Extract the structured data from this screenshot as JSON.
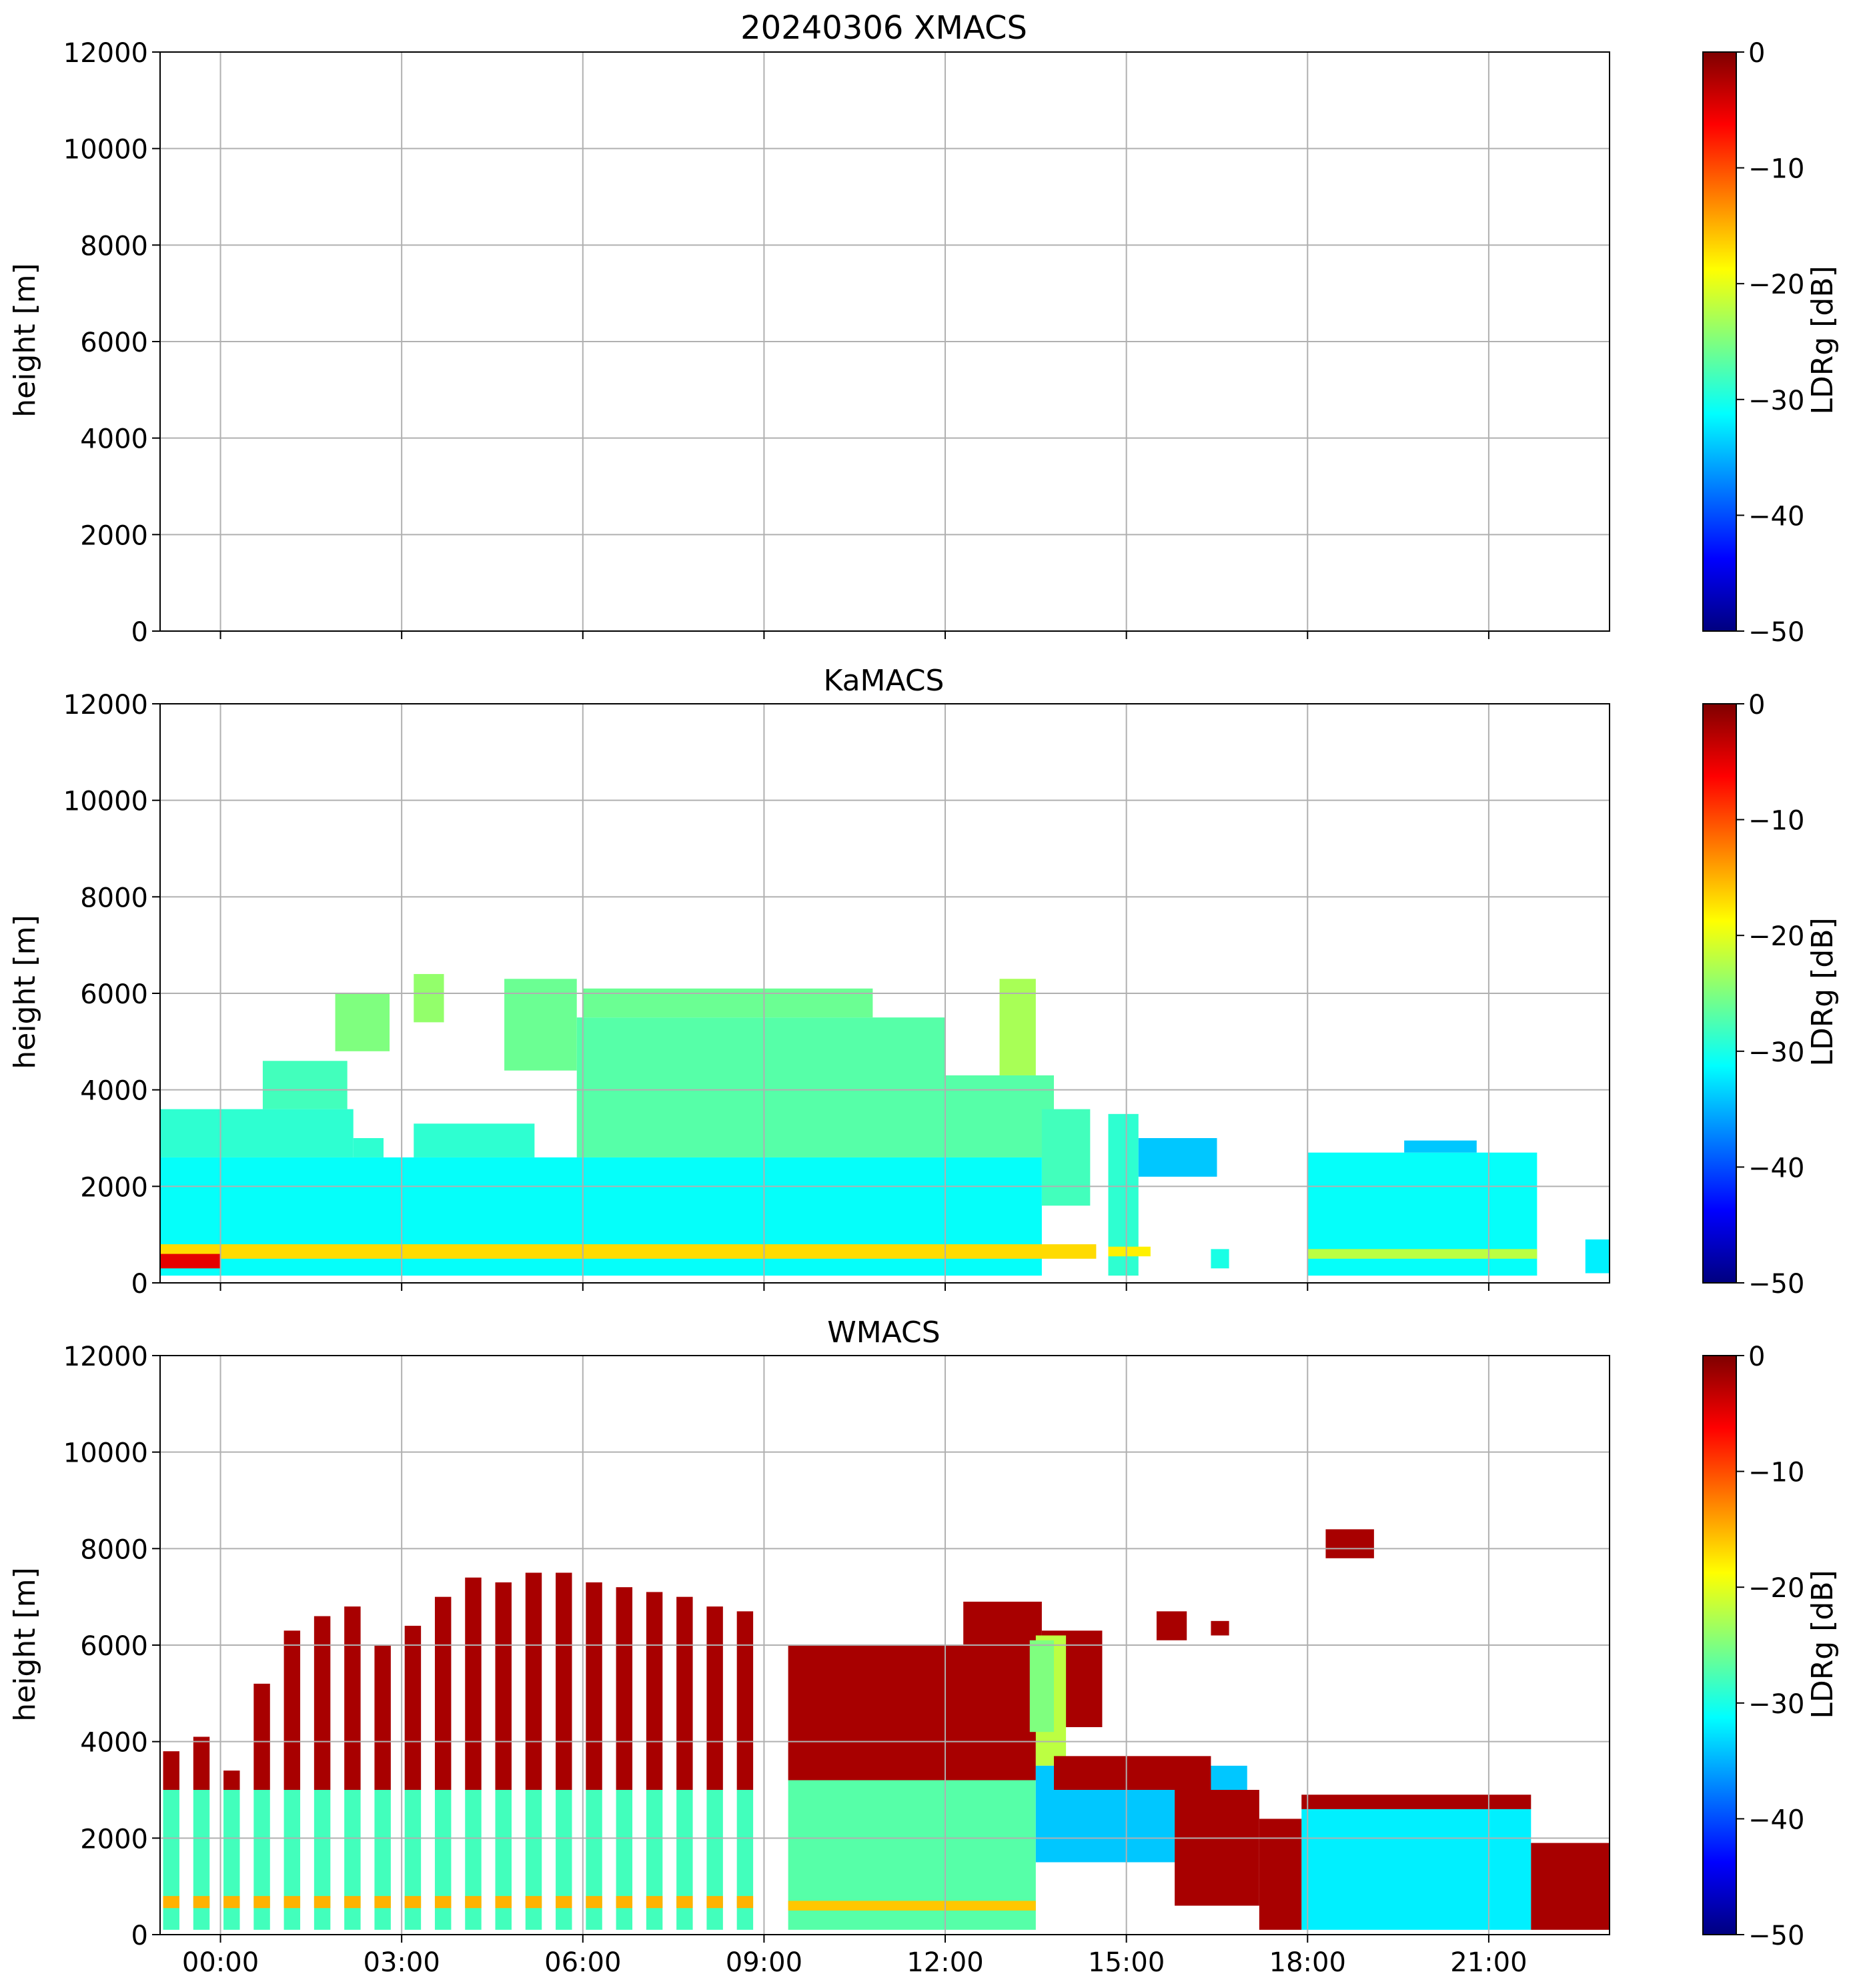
{
  "figure": {
    "colorscale": {
      "name": "jet",
      "stops": [
        "#00007f",
        "#0000ff",
        "#007fff",
        "#00ffff",
        "#7fff7f",
        "#ffff00",
        "#ff7f00",
        "#ff0000",
        "#7f0000"
      ]
    }
  },
  "chart_data": [
    {
      "type": "heatmap",
      "title": "20240306 XMACS",
      "ylabel": "height [m]",
      "xlim": [
        "23:00",
        "23:00"
      ],
      "xlim_hours": [
        -1,
        23
      ],
      "ylim": [
        0,
        12000
      ],
      "yticks": [
        {
          "value": 0,
          "label": "0"
        },
        {
          "value": 2000,
          "label": "2000"
        },
        {
          "value": 4000,
          "label": "4000"
        },
        {
          "value": 6000,
          "label": "6000"
        },
        {
          "value": 8000,
          "label": "8000"
        },
        {
          "value": 10000,
          "label": "10000"
        },
        {
          "value": 12000,
          "label": "12000"
        }
      ],
      "xticks_hours": [
        0,
        3,
        6,
        9,
        12,
        15,
        18,
        21
      ],
      "xtick_labels": [],
      "grid": true,
      "colorbar": {
        "label": "LDRg [dB]",
        "range": [
          -50,
          0
        ],
        "ticks": [
          {
            "value": 0,
            "label": "0"
          },
          {
            "value": -10,
            "label": "−10"
          },
          {
            "value": -20,
            "label": "−20"
          },
          {
            "value": -30,
            "label": "−30"
          },
          {
            "value": -40,
            "label": "−40"
          },
          {
            "value": -50,
            "label": "−50"
          }
        ]
      },
      "regions": []
    },
    {
      "type": "heatmap",
      "title": "KaMACS",
      "ylabel": "height [m]",
      "xlim_hours": [
        -1,
        23
      ],
      "ylim": [
        0,
        12000
      ],
      "yticks": [
        {
          "value": 0,
          "label": "0"
        },
        {
          "value": 2000,
          "label": "2000"
        },
        {
          "value": 4000,
          "label": "4000"
        },
        {
          "value": 6000,
          "label": "6000"
        },
        {
          "value": 8000,
          "label": "8000"
        },
        {
          "value": 10000,
          "label": "10000"
        },
        {
          "value": 12000,
          "label": "12000"
        }
      ],
      "xticks_hours": [
        0,
        3,
        6,
        9,
        12,
        15,
        18,
        21
      ],
      "xtick_labels": [],
      "grid": true,
      "colorbar": {
        "label": "LDRg [dB]",
        "range": [
          -50,
          0
        ],
        "ticks": [
          {
            "value": 0,
            "label": "0"
          },
          {
            "value": -10,
            "label": "−10"
          },
          {
            "value": -20,
            "label": "−20"
          },
          {
            "value": -30,
            "label": "−30"
          },
          {
            "value": -40,
            "label": "−40"
          },
          {
            "value": -50,
            "label": "−50"
          }
        ]
      },
      "regions": [
        {
          "t0": -1.0,
          "t1": 13.6,
          "h0": 150,
          "h1": 2600,
          "ldr": -31
        },
        {
          "t0": -1.0,
          "t1": 2.2,
          "h0": 2600,
          "h1": 3600,
          "ldr": -29
        },
        {
          "t0": 0.7,
          "t1": 2.1,
          "h0": 3600,
          "h1": 4600,
          "ldr": -28
        },
        {
          "t0": 1.9,
          "t1": 2.8,
          "h0": 4800,
          "h1": 6000,
          "ldr": -25
        },
        {
          "t0": 2.2,
          "t1": 2.7,
          "h0": 2600,
          "h1": 3000,
          "ldr": -29
        },
        {
          "t0": 3.2,
          "t1": 5.2,
          "h0": 2600,
          "h1": 3300,
          "ldr": -29
        },
        {
          "t0": 3.2,
          "t1": 3.7,
          "h0": 5400,
          "h1": 6400,
          "ldr": -24
        },
        {
          "t0": 4.7,
          "t1": 5.9,
          "h0": 4400,
          "h1": 6300,
          "ldr": -26
        },
        {
          "t0": 5.9,
          "t1": 12.0,
          "h0": 2600,
          "h1": 5500,
          "ldr": -27
        },
        {
          "t0": 6.0,
          "t1": 10.8,
          "h0": 5500,
          "h1": 6100,
          "ldr": -26
        },
        {
          "t0": 12.0,
          "t1": 13.8,
          "h0": 2600,
          "h1": 4300,
          "ldr": -27
        },
        {
          "t0": 12.9,
          "t1": 13.5,
          "h0": 4300,
          "h1": 6300,
          "ldr": -23
        },
        {
          "t0": 13.6,
          "t1": 14.4,
          "h0": 1600,
          "h1": 3600,
          "ldr": -28
        },
        {
          "t0": 14.7,
          "t1": 15.2,
          "h0": 150,
          "h1": 3500,
          "ldr": -29
        },
        {
          "t0": 15.2,
          "t1": 16.5,
          "h0": 2200,
          "h1": 3000,
          "ldr": -34
        },
        {
          "t0": 16.4,
          "t1": 16.7,
          "h0": 300,
          "h1": 700,
          "ldr": -30
        },
        {
          "t0": 18.0,
          "t1": 21.8,
          "h0": 150,
          "h1": 2700,
          "ldr": -31
        },
        {
          "t0": 19.6,
          "t1": 20.8,
          "h0": 2700,
          "h1": 2950,
          "ldr": -34
        },
        {
          "t0": 22.6,
          "t1": 23.0,
          "h0": 200,
          "h1": 900,
          "ldr": -32
        },
        {
          "t0": -1.0,
          "t1": 14.5,
          "h0": 500,
          "h1": 800,
          "ldr": -17
        },
        {
          "t0": -1.0,
          "t1": 0.0,
          "h0": 300,
          "h1": 600,
          "ldr": -5
        },
        {
          "t0": 14.7,
          "t1": 15.4,
          "h0": 550,
          "h1": 750,
          "ldr": -18
        },
        {
          "t0": 18.0,
          "t1": 21.8,
          "h0": 500,
          "h1": 700,
          "ldr": -22
        }
      ]
    },
    {
      "type": "heatmap",
      "title": "WMACS",
      "ylabel": "height [m]",
      "xlim_hours": [
        -1,
        23
      ],
      "ylim": [
        0,
        12000
      ],
      "yticks": [
        {
          "value": 0,
          "label": "0"
        },
        {
          "value": 2000,
          "label": "2000"
        },
        {
          "value": 4000,
          "label": "4000"
        },
        {
          "value": 6000,
          "label": "6000"
        },
        {
          "value": 8000,
          "label": "8000"
        },
        {
          "value": 10000,
          "label": "10000"
        },
        {
          "value": 12000,
          "label": "12000"
        }
      ],
      "xticks_hours": [
        0,
        3,
        6,
        9,
        12,
        15,
        18,
        21
      ],
      "xtick_labels": [
        "00:00",
        "03:00",
        "06:00",
        "09:00",
        "12:00",
        "15:00",
        "18:00",
        "21:00"
      ],
      "grid": true,
      "colorbar": {
        "label": "LDRg [dB]",
        "range": [
          -50,
          0
        ],
        "ticks": [
          {
            "value": 0,
            "label": "0"
          },
          {
            "value": -10,
            "label": "−10"
          },
          {
            "value": -20,
            "label": "−20"
          },
          {
            "value": -30,
            "label": "−30"
          },
          {
            "value": -40,
            "label": "−40"
          },
          {
            "value": -50,
            "label": "−50"
          }
        ]
      },
      "bars": {
        "t_start": -0.95,
        "t_step": 0.5,
        "count": 20,
        "width": 0.27,
        "tops": [
          3800,
          4100,
          3400,
          5200,
          6300,
          6600,
          6800,
          6000,
          6400,
          7000,
          7400,
          7300,
          7500,
          7500,
          7300,
          7200,
          7100,
          7000,
          6800,
          6700
        ],
        "h0": 100,
        "mid_top": 3000,
        "band_h0": 550,
        "band_h1": 800
      },
      "regions": [
        {
          "t0": 9.4,
          "t1": 13.5,
          "h0": 3200,
          "h1": 6000,
          "ldr": -2
        },
        {
          "t0": 9.4,
          "t1": 13.5,
          "h0": 100,
          "h1": 3200,
          "ldr": -27
        },
        {
          "t0": 9.4,
          "t1": 13.5,
          "h0": 500,
          "h1": 700,
          "ldr": -16
        },
        {
          "t0": 12.3,
          "t1": 13.6,
          "h0": 4000,
          "h1": 6900,
          "ldr": -2
        },
        {
          "t0": 13.6,
          "t1": 14.6,
          "h0": 4300,
          "h1": 6300,
          "ldr": -2
        },
        {
          "t0": 13.5,
          "t1": 14.0,
          "h0": 3500,
          "h1": 6200,
          "ldr": -22
        },
        {
          "t0": 13.5,
          "t1": 17.0,
          "h0": 1500,
          "h1": 3500,
          "ldr": -34
        },
        {
          "t0": 13.8,
          "t1": 16.4,
          "h0": 3000,
          "h1": 3700,
          "ldr": -2
        },
        {
          "t0": 15.8,
          "t1": 17.2,
          "h0": 600,
          "h1": 3000,
          "ldr": -2
        },
        {
          "t0": 15.5,
          "t1": 16.0,
          "h0": 6100,
          "h1": 6700,
          "ldr": -2
        },
        {
          "t0": 16.4,
          "t1": 16.7,
          "h0": 6200,
          "h1": 6500,
          "ldr": -2
        },
        {
          "t0": 17.9,
          "t1": 21.7,
          "h0": 2600,
          "h1": 2900,
          "ldr": -2
        },
        {
          "t0": 17.9,
          "t1": 21.7,
          "h0": 100,
          "h1": 2600,
          "ldr": -32
        },
        {
          "t0": 17.2,
          "t1": 17.9,
          "h0": 100,
          "h1": 2400,
          "ldr": -2
        },
        {
          "t0": 21.7,
          "t1": 23.0,
          "h0": 100,
          "h1": 1900,
          "ldr": -2
        },
        {
          "t0": 18.3,
          "t1": 19.1,
          "h0": 7800,
          "h1": 8400,
          "ldr": -2
        },
        {
          "t0": 13.4,
          "t1": 13.8,
          "h0": 4200,
          "h1": 6100,
          "ldr": -25
        }
      ]
    }
  ]
}
